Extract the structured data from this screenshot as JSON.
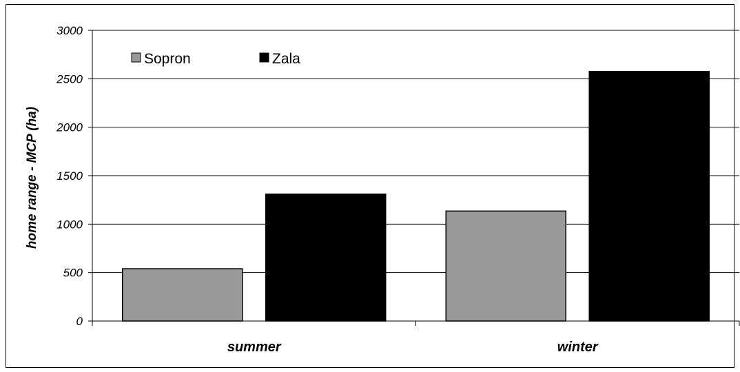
{
  "chart_data": {
    "type": "bar",
    "title": "",
    "xlabel": "",
    "ylabel": "home range - MCP (ha)",
    "ylim": [
      0,
      3000
    ],
    "yticks": [
      0,
      500,
      1000,
      1500,
      2000,
      2500,
      3000
    ],
    "grid": true,
    "legend_position": "top-left",
    "categories": [
      "summer",
      "winter"
    ],
    "series": [
      {
        "name": "Sopron",
        "color": "#999999",
        "values": [
          540,
          1135
        ]
      },
      {
        "name": "Zala",
        "color": "#000000",
        "values": [
          1310,
          2575
        ]
      }
    ]
  }
}
